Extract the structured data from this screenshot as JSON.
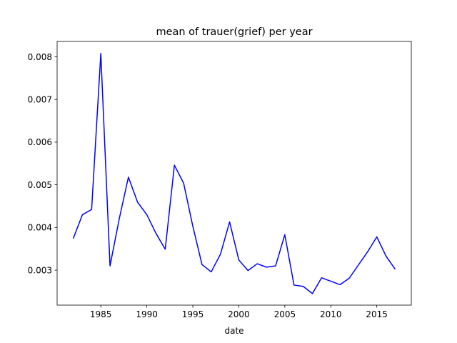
{
  "chart_data": {
    "type": "line",
    "title": "mean of trauer(grief) per year",
    "xlabel": "date",
    "ylabel": "",
    "xlim": [
      1980.25,
      2018.75
    ],
    "ylim": [
      0.00218,
      0.00836
    ],
    "xticks": [
      1985,
      1990,
      1995,
      2000,
      2005,
      2010,
      2015
    ],
    "yticks": [
      0.003,
      0.004,
      0.005,
      0.006,
      0.007,
      0.008
    ],
    "ytick_labels": [
      "0.003",
      "0.004",
      "0.005",
      "0.006",
      "0.007",
      "0.008"
    ],
    "grid": false,
    "series": [
      {
        "color": "#0000ff",
        "x": [
          1982,
          1983,
          1984,
          1985,
          1986,
          1987,
          1988,
          1989,
          1990,
          1991,
          1992,
          1993,
          1994,
          1995,
          1996,
          1997,
          1998,
          1999,
          2000,
          2001,
          2002,
          2003,
          2004,
          2005,
          2006,
          2007,
          2008,
          2009,
          2010,
          2011,
          2012,
          2013,
          2014,
          2015,
          2016,
          2017
        ],
        "values": [
          0.00374,
          0.0043,
          0.00442,
          0.00808,
          0.0031,
          0.0042,
          0.00518,
          0.00459,
          0.0043,
          0.00386,
          0.00349,
          0.00546,
          0.00504,
          0.00403,
          0.00313,
          0.00296,
          0.00337,
          0.00413,
          0.00324,
          0.00299,
          0.00315,
          0.00307,
          0.0031,
          0.00383,
          0.00265,
          0.00262,
          0.00245,
          0.00282,
          0.00274,
          0.00266,
          0.00281,
          0.00312,
          0.00343,
          0.00378,
          0.00333,
          0.00302
        ]
      }
    ]
  }
}
